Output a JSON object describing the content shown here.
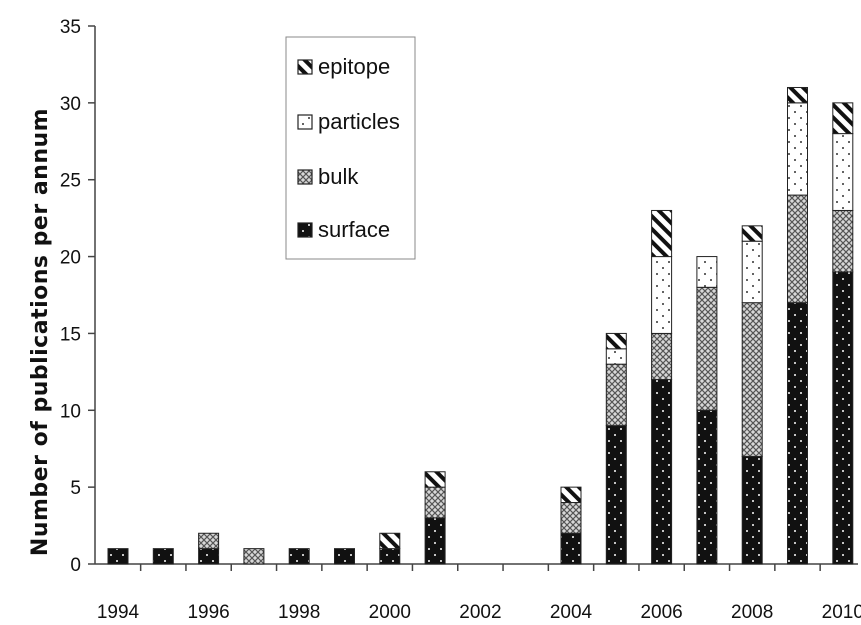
{
  "chart_data": {
    "type": "bar",
    "stacked": true,
    "title": "",
    "xlabel": "",
    "ylabel": "Number of publications per annum",
    "ylim": [
      0,
      35
    ],
    "yticks": [
      "0",
      "5",
      "10",
      "15",
      "20",
      "25",
      "30",
      "35"
    ],
    "xticks": [
      "1994",
      "1996",
      "1998",
      "2000",
      "2002",
      "2004",
      "2006",
      "2008",
      "2010"
    ],
    "categories": [
      "1994",
      "1995",
      "1996",
      "1997",
      "1998",
      "1999",
      "2000",
      "2001",
      "2002",
      "2003",
      "2004",
      "2005",
      "2006",
      "2007",
      "2008",
      "2009",
      "2010"
    ],
    "series": [
      {
        "name": "surface",
        "pattern": "solid-dots",
        "values": [
          1,
          1,
          1,
          0,
          1,
          1,
          1,
          3,
          0,
          0,
          2,
          9,
          12,
          10,
          7,
          17,
          19
        ]
      },
      {
        "name": "bulk",
        "pattern": "crosshatch",
        "values": [
          0,
          0,
          1,
          1,
          0,
          0,
          0,
          2,
          0,
          0,
          2,
          4,
          3,
          8,
          10,
          7,
          4
        ]
      },
      {
        "name": "particles",
        "pattern": "dotted",
        "values": [
          0,
          0,
          0,
          0,
          0,
          0,
          0,
          0,
          0,
          0,
          0,
          1,
          5,
          2,
          4,
          6,
          5
        ]
      },
      {
        "name": "epitope",
        "pattern": "diagonal",
        "values": [
          0,
          0,
          0,
          0,
          0,
          0,
          1,
          1,
          0,
          0,
          1,
          1,
          3,
          0,
          1,
          1,
          2
        ]
      }
    ],
    "legend_order": [
      "epitope",
      "particles",
      "bulk",
      "surface"
    ],
    "legend_position": "top-left-inside",
    "grid": false,
    "colors": {
      "bar_fill": "#111111",
      "outline": "#222222",
      "background": "#ffffff"
    }
  }
}
